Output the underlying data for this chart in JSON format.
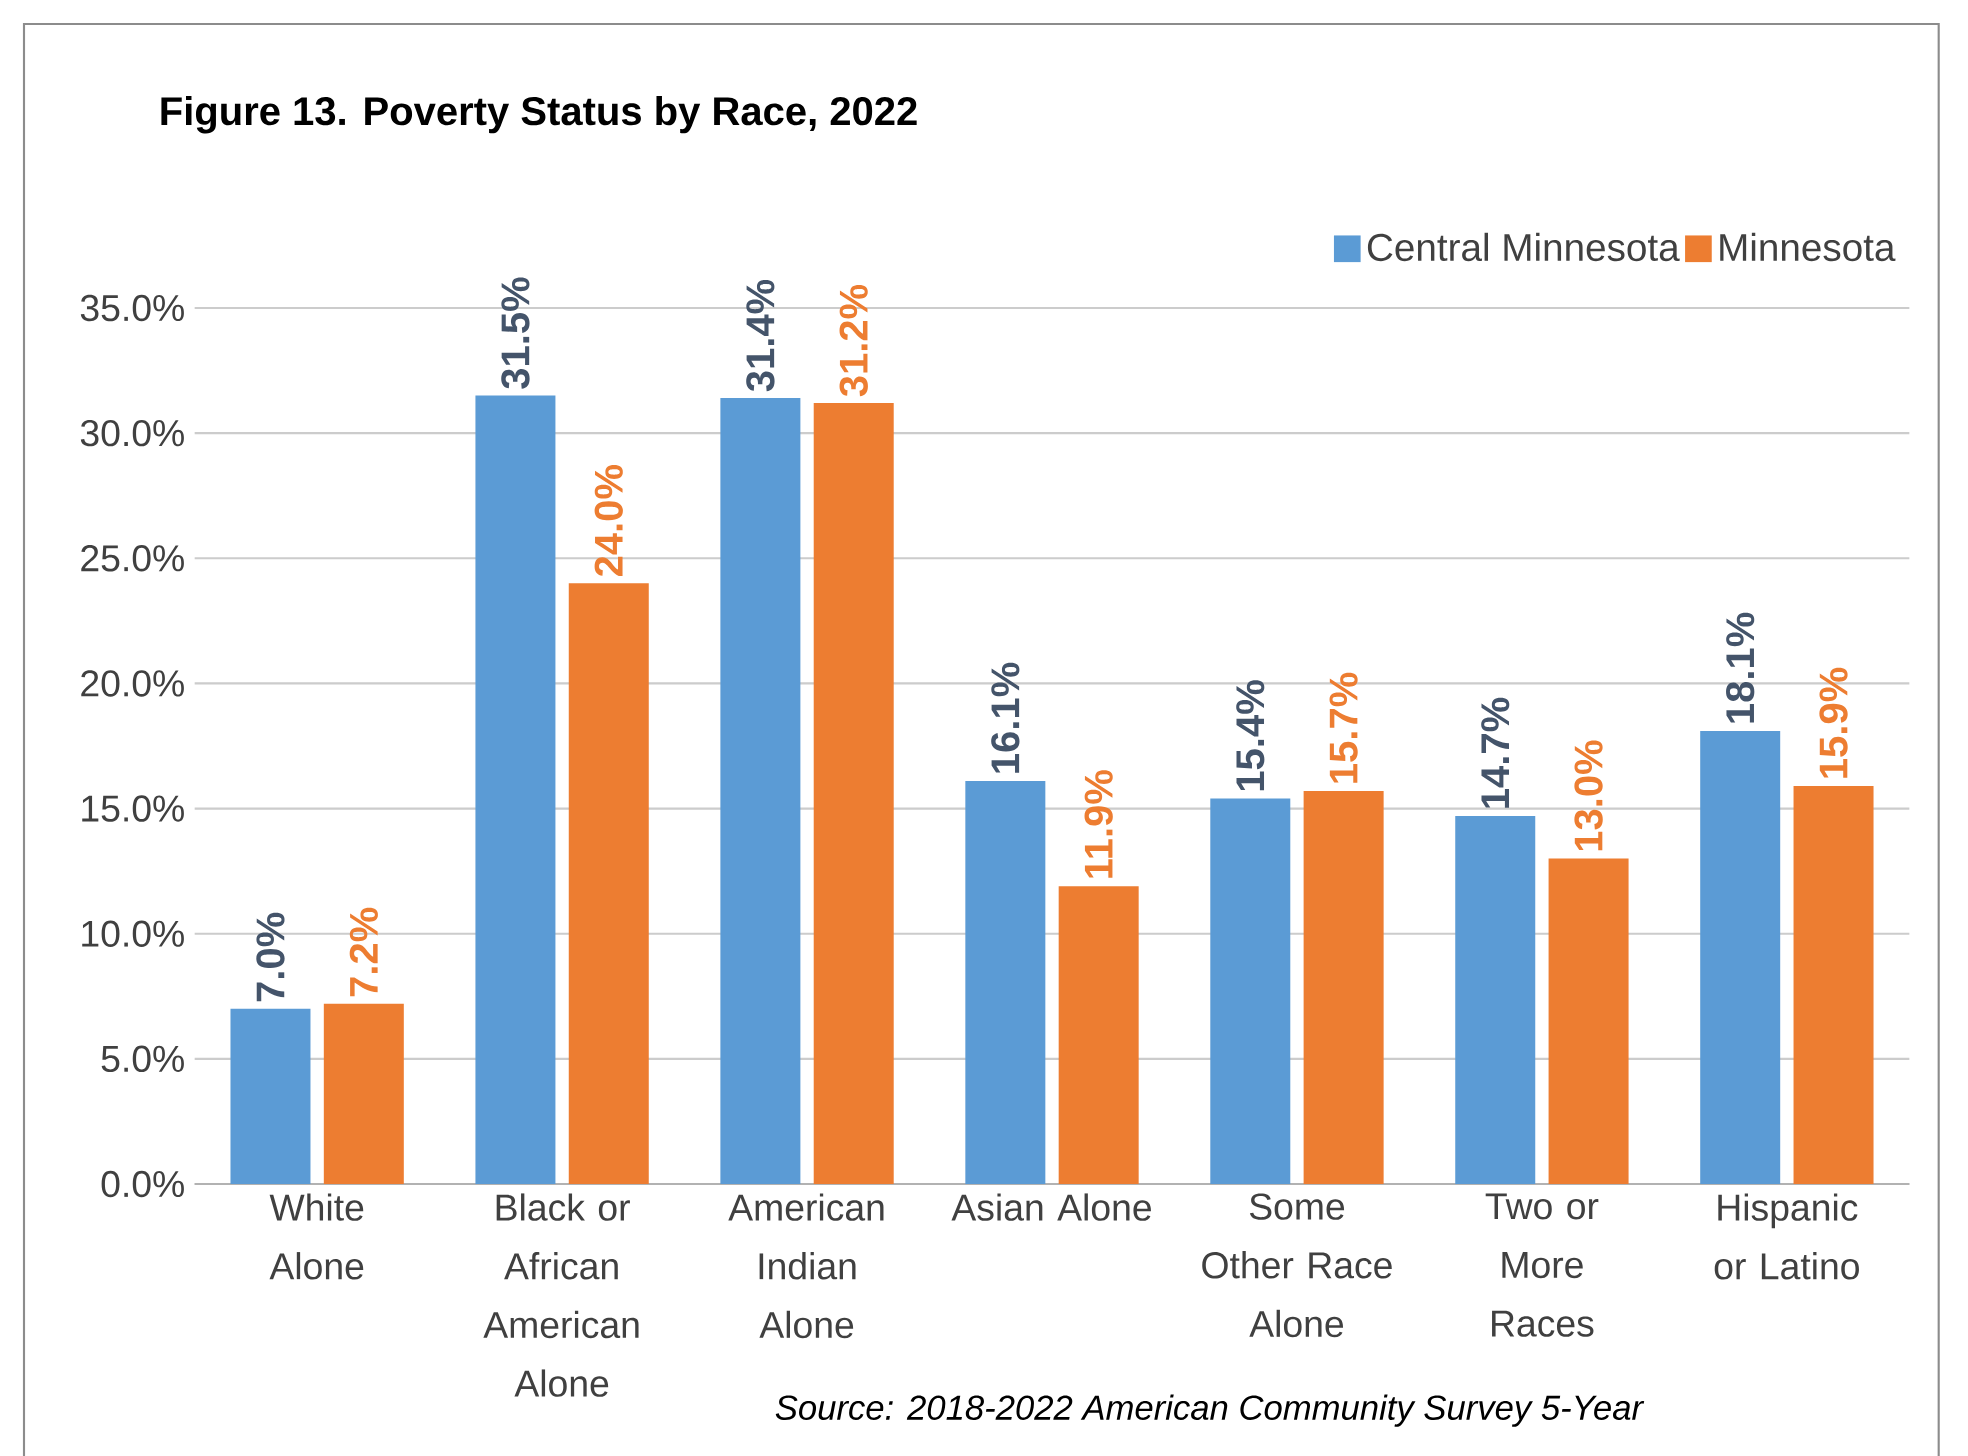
{
  "chart_data": {
    "type": "bar",
    "title": "Figure 13. Poverty Status by Race, 2022",
    "categories": [
      "White Alone",
      "Black or African American Alone",
      "American Indian Alone",
      "Asian Alone",
      "Some Other Race Alone",
      "Two or More Races",
      "Hispanic or Latino"
    ],
    "series": [
      {
        "name": "Central Minnesota",
        "color": "#5b9bd5",
        "values": [
          7.0,
          31.5,
          31.4,
          16.1,
          15.4,
          14.7,
          18.1
        ],
        "value_labels": [
          "7.0%",
          "31.5%",
          "31.4%",
          "16.1%",
          "15.4%",
          "14.7%",
          "18.1%"
        ]
      },
      {
        "name": "Minnesota",
        "color": "#ed7d31",
        "values": [
          7.2,
          24.0,
          31.2,
          11.9,
          15.7,
          13.0,
          15.9
        ],
        "value_labels": [
          "7.2%",
          "24.0%",
          "31.2%",
          "11.9%",
          "15.7%",
          "13.0%",
          "15.9%"
        ]
      }
    ],
    "ylim": [
      0,
      35
    ],
    "yticks": [
      {
        "value": 0,
        "label": "0.0%"
      },
      {
        "value": 5,
        "label": "5.0%"
      },
      {
        "value": 10,
        "label": "10.0%"
      },
      {
        "value": 15,
        "label": "15.0%"
      },
      {
        "value": 20,
        "label": "20.0%"
      },
      {
        "value": 25,
        "label": "25.0%"
      },
      {
        "value": 30,
        "label": "30.0%"
      },
      {
        "value": 35,
        "label": "35.0%"
      }
    ],
    "grid": "y",
    "legend": "top right",
    "annotations": [
      "Source: 2018-2022 American Community Survey 5-Year"
    ]
  }
}
